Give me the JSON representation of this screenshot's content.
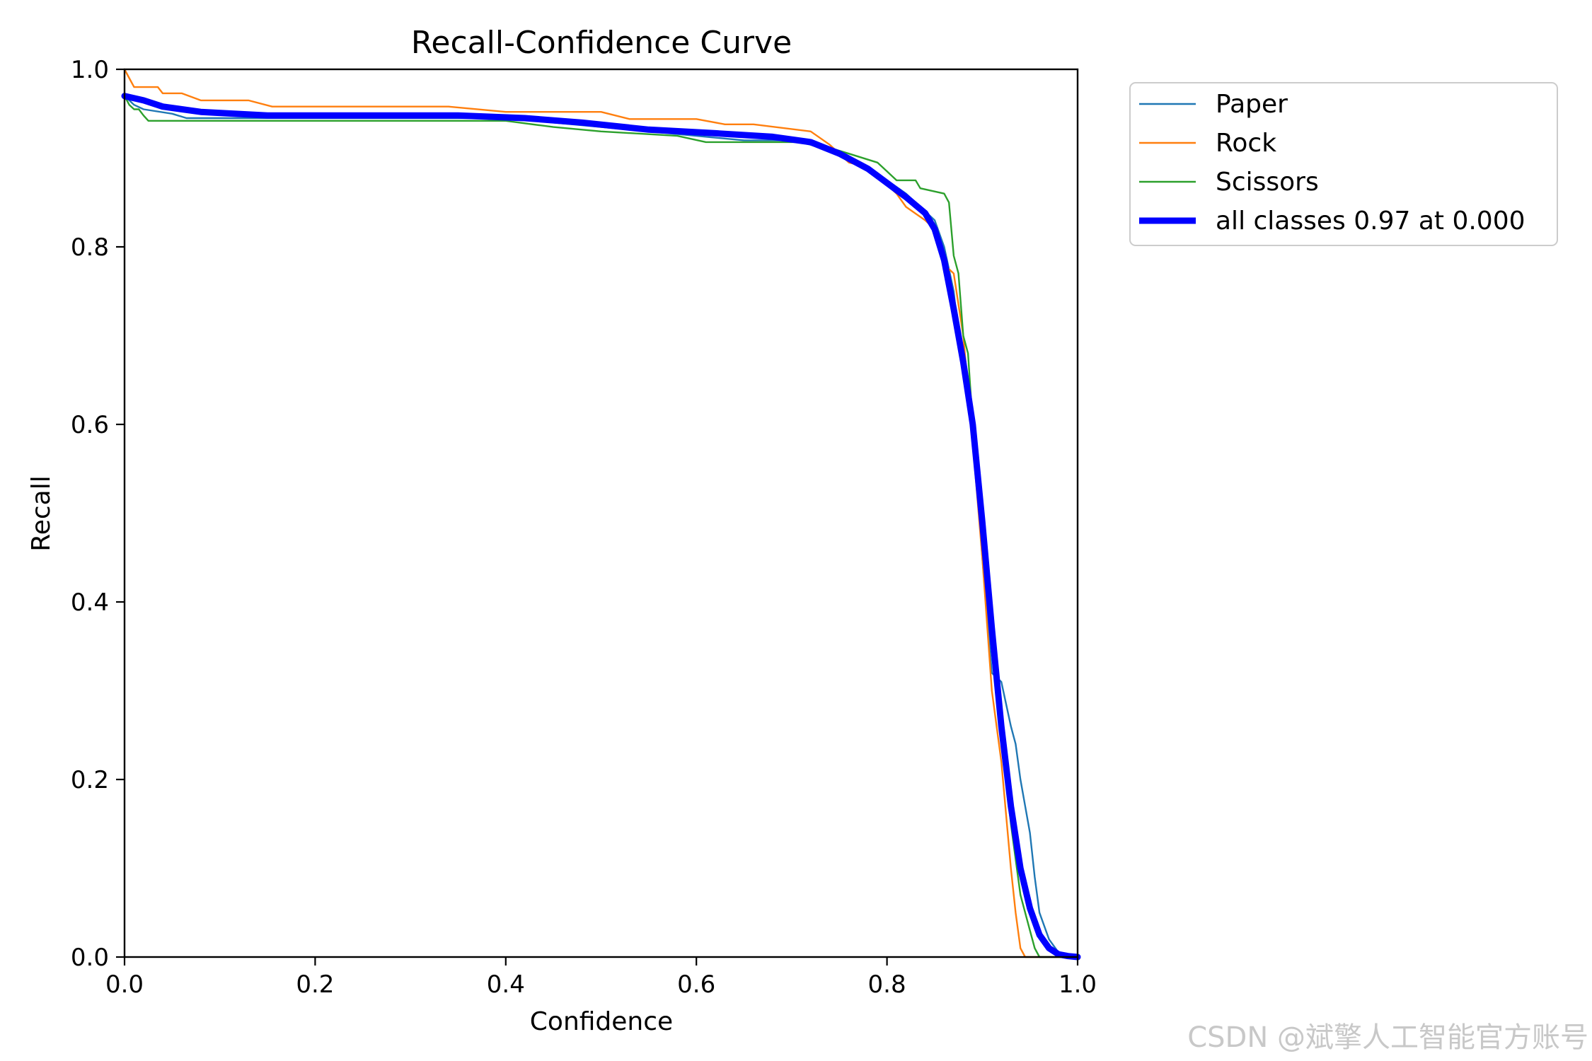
{
  "chart_data": {
    "type": "line",
    "title": "Recall-Confidence Curve",
    "xlabel": "Confidence",
    "ylabel": "Recall",
    "xlim": [
      0,
      1
    ],
    "ylim": [
      0,
      1
    ],
    "xticks": [
      "0.0",
      "0.2",
      "0.4",
      "0.6",
      "0.8",
      "1.0"
    ],
    "yticks": [
      "0.0",
      "0.2",
      "0.4",
      "0.6",
      "0.8",
      "1.0"
    ],
    "grid": false,
    "legend": "outside-top-right",
    "series": [
      {
        "name": "Paper",
        "color": "#1f77b4",
        "width": "thin",
        "x": [
          0,
          0.005,
          0.01,
          0.02,
          0.05,
          0.065,
          0.1,
          0.2,
          0.3,
          0.4,
          0.45,
          0.5,
          0.55,
          0.6,
          0.65,
          0.7,
          0.72,
          0.75,
          0.78,
          0.8,
          0.82,
          0.84,
          0.85,
          0.86,
          0.87,
          0.875,
          0.88,
          0.89,
          0.9,
          0.91,
          0.92,
          0.93,
          0.935,
          0.94,
          0.945,
          0.95,
          0.955,
          0.96,
          0.97,
          0.98,
          1.0
        ],
        "y": [
          0.97,
          0.965,
          0.96,
          0.955,
          0.95,
          0.945,
          0.945,
          0.945,
          0.945,
          0.945,
          0.94,
          0.935,
          0.93,
          0.925,
          0.92,
          0.92,
          0.915,
          0.905,
          0.885,
          0.875,
          0.86,
          0.84,
          0.83,
          0.8,
          0.75,
          0.7,
          0.68,
          0.6,
          0.45,
          0.32,
          0.31,
          0.26,
          0.24,
          0.2,
          0.17,
          0.14,
          0.09,
          0.05,
          0.02,
          0.005,
          0.0
        ]
      },
      {
        "name": "Rock",
        "color": "#ff7f0e",
        "width": "thin",
        "x": [
          0,
          0.005,
          0.01,
          0.035,
          0.04,
          0.06,
          0.08,
          0.13,
          0.155,
          0.2,
          0.34,
          0.4,
          0.5,
          0.53,
          0.6,
          0.63,
          0.66,
          0.72,
          0.74,
          0.75,
          0.76,
          0.78,
          0.8,
          0.81,
          0.82,
          0.84,
          0.85,
          0.86,
          0.87,
          0.88,
          0.89,
          0.9,
          0.91,
          0.92,
          0.93,
          0.935,
          0.94,
          0.945,
          1.0
        ],
        "y": [
          1.0,
          0.99,
          0.98,
          0.98,
          0.973,
          0.973,
          0.965,
          0.965,
          0.958,
          0.958,
          0.958,
          0.952,
          0.952,
          0.944,
          0.944,
          0.938,
          0.938,
          0.93,
          0.915,
          0.905,
          0.895,
          0.89,
          0.87,
          0.86,
          0.845,
          0.83,
          0.82,
          0.78,
          0.77,
          0.7,
          0.58,
          0.45,
          0.3,
          0.22,
          0.1,
          0.05,
          0.01,
          0.0,
          0.0
        ]
      },
      {
        "name": "Scissors",
        "color": "#2ca02c",
        "width": "thin",
        "x": [
          0,
          0.005,
          0.01,
          0.015,
          0.02,
          0.025,
          0.1,
          0.2,
          0.3,
          0.4,
          0.45,
          0.5,
          0.58,
          0.61,
          0.72,
          0.76,
          0.79,
          0.8,
          0.81,
          0.83,
          0.835,
          0.86,
          0.865,
          0.87,
          0.875,
          0.88,
          0.885,
          0.89,
          0.9,
          0.91,
          0.92,
          0.93,
          0.94,
          0.95,
          0.955,
          0.96,
          1.0
        ],
        "y": [
          0.97,
          0.96,
          0.955,
          0.955,
          0.948,
          0.942,
          0.942,
          0.942,
          0.942,
          0.942,
          0.935,
          0.93,
          0.925,
          0.918,
          0.918,
          0.905,
          0.895,
          0.885,
          0.875,
          0.875,
          0.866,
          0.86,
          0.85,
          0.79,
          0.77,
          0.7,
          0.68,
          0.6,
          0.48,
          0.35,
          0.25,
          0.15,
          0.07,
          0.03,
          0.01,
          0.0,
          0.0
        ]
      },
      {
        "name": "all classes 0.97 at 0.000",
        "color": "#0000ff",
        "width": "thick",
        "x": [
          0,
          0.02,
          0.04,
          0.08,
          0.15,
          0.25,
          0.35,
          0.42,
          0.48,
          0.55,
          0.62,
          0.68,
          0.72,
          0.75,
          0.78,
          0.8,
          0.82,
          0.84,
          0.85,
          0.86,
          0.87,
          0.88,
          0.89,
          0.9,
          0.91,
          0.92,
          0.93,
          0.94,
          0.95,
          0.96,
          0.97,
          0.98,
          0.99,
          1.0
        ],
        "y": [
          0.97,
          0.965,
          0.958,
          0.952,
          0.948,
          0.948,
          0.948,
          0.945,
          0.94,
          0.932,
          0.928,
          0.924,
          0.918,
          0.905,
          0.888,
          0.872,
          0.856,
          0.838,
          0.82,
          0.785,
          0.73,
          0.67,
          0.6,
          0.49,
          0.37,
          0.26,
          0.17,
          0.1,
          0.055,
          0.025,
          0.01,
          0.003,
          0.001,
          0.0
        ]
      }
    ]
  },
  "watermark": "CSDN @斌擎人工智能官方账号"
}
